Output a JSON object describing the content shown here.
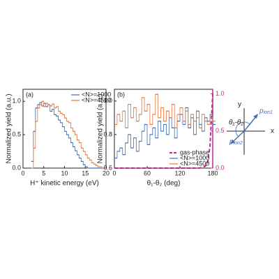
{
  "chart_data": [
    {
      "type": "line",
      "drawstyle": "steps",
      "panel_label": "(a)",
      "xlabel": "H⁺ kinetic energy (eV)",
      "ylabel": "Normalized yield (a.u.)",
      "xlim": [
        0,
        20
      ],
      "xticks": [
        0,
        5,
        10,
        15,
        20
      ],
      "ylim": [
        0,
        1.18
      ],
      "yticks": [
        {
          "value": 0,
          "label": "0.0"
        },
        {
          "value": 0.5,
          "label": "0.5"
        },
        {
          "value": 1,
          "label": "1.0"
        }
      ],
      "legend": "upper right",
      "x": [
        2,
        2.5,
        3,
        3.5,
        4,
        4.5,
        5,
        5.5,
        6,
        6.5,
        7,
        7.5,
        8,
        8.5,
        9,
        9.5,
        10,
        10.5,
        11,
        11.5,
        12,
        12.5,
        13,
        13.5,
        14,
        14.5,
        15,
        15.5,
        16,
        16.5,
        17,
        17.5,
        18,
        18.5,
        19,
        19.5
      ],
      "series": [
        {
          "name": "<N>=1000",
          "color": "#3f6fb5",
          "values": [
            0.1,
            0.55,
            0.9,
            0.95,
            0.98,
            0.93,
            0.97,
            0.92,
            0.95,
            0.85,
            0.88,
            0.8,
            0.78,
            0.72,
            0.68,
            0.62,
            0.55,
            0.5,
            0.45,
            0.38,
            0.32,
            0.26,
            0.2,
            0.15,
            0.1,
            0.05,
            0.02,
            0,
            0,
            0,
            0,
            0,
            0,
            0,
            0,
            0
          ]
        },
        {
          "name": "<N>=4500",
          "color": "#e8743b",
          "values": [
            0,
            0.3,
            0.7,
            0.9,
            0.95,
            1.0,
            0.92,
            0.97,
            0.95,
            0.93,
            0.96,
            0.9,
            0.92,
            0.85,
            0.82,
            0.8,
            0.75,
            0.7,
            0.68,
            0.6,
            0.55,
            0.5,
            0.42,
            0.38,
            0.3,
            0.25,
            0.2,
            0.15,
            0.12,
            0.08,
            0.06,
            0.04,
            0.02,
            0.02,
            0,
            0
          ]
        }
      ]
    },
    {
      "type": "line",
      "drawstyle": "steps",
      "panel_label": "(b)",
      "xlabel": "θ₁-θ₂ (deg)",
      "ylabel": "Normalized yield (a.u.)",
      "xlim": [
        0,
        180
      ],
      "xticks": [
        0,
        60,
        120,
        180
      ],
      "ylim": [
        0.6,
        1.07
      ],
      "yticks": [
        0.6,
        0.8,
        {
          "value": 1,
          "label": "1.0"
        }
      ],
      "y2lim": [
        0,
        1.06
      ],
      "y2ticks": [
        {
          "value": 0,
          "label": "0.0"
        },
        {
          "value": 0.5,
          "label": "0.5"
        },
        {
          "value": 1,
          "label": "1.0"
        }
      ],
      "y2color": "#c0288a",
      "legend": "lower right",
      "x": [
        0,
        5,
        10,
        15,
        20,
        25,
        30,
        35,
        40,
        45,
        50,
        55,
        60,
        65,
        70,
        75,
        80,
        85,
        90,
        95,
        100,
        105,
        110,
        115,
        120,
        125,
        130,
        135,
        140,
        145,
        150,
        155,
        160,
        165,
        170,
        175,
        180
      ],
      "series": [
        {
          "name": "gas-phase",
          "color": "#c0288a",
          "axis": "y2",
          "style": "dashed",
          "values": [
            0,
            0,
            0,
            0,
            0,
            0,
            0,
            0,
            0,
            0,
            0,
            0,
            0,
            0,
            0,
            0,
            0,
            0,
            0,
            0,
            0,
            0,
            0,
            0,
            0,
            0,
            0,
            0,
            0,
            0,
            0,
            0,
            0.01,
            0.02,
            0.05,
            0.3,
            1.0
          ]
        },
        {
          "name": "<N>=1000",
          "color": "#3f6fb5",
          "values": [
            0.66,
            0.7,
            0.72,
            0.68,
            0.75,
            0.8,
            0.72,
            0.78,
            0.7,
            0.76,
            0.82,
            0.86,
            0.74,
            0.8,
            0.84,
            0.78,
            0.88,
            0.82,
            0.86,
            0.8,
            0.9,
            0.84,
            0.78,
            0.88,
            0.92,
            0.86,
            0.96,
            0.84,
            0.9,
            0.8,
            0.94,
            0.86,
            0.82,
            0.9,
            0.88,
            0.92,
            0.86
          ]
        },
        {
          "name": "<N>=4500",
          "color": "#e8743b",
          "values": [
            0.86,
            0.92,
            0.88,
            0.94,
            0.84,
            0.98,
            0.9,
            0.96,
            0.88,
            0.92,
            1.02,
            0.94,
            0.98,
            0.86,
            0.92,
            1.04,
            0.9,
            0.96,
            0.88,
            0.94,
            0.9,
            0.98,
            0.84,
            0.92,
            0.96,
            0.88,
            0.94,
            0.86,
            0.92,
            0.88,
            0.9,
            0.84,
            0.92,
            0.88,
            0.86,
            0.9,
            0.88
          ]
        }
      ]
    }
  ],
  "diagram": {
    "y_axis": "y",
    "x_axis": "x",
    "angle": "θ₁-θ₂",
    "p1": "p",
    "p1_sub": "ion1",
    "p2": "p",
    "p2_sub": "ion2"
  }
}
